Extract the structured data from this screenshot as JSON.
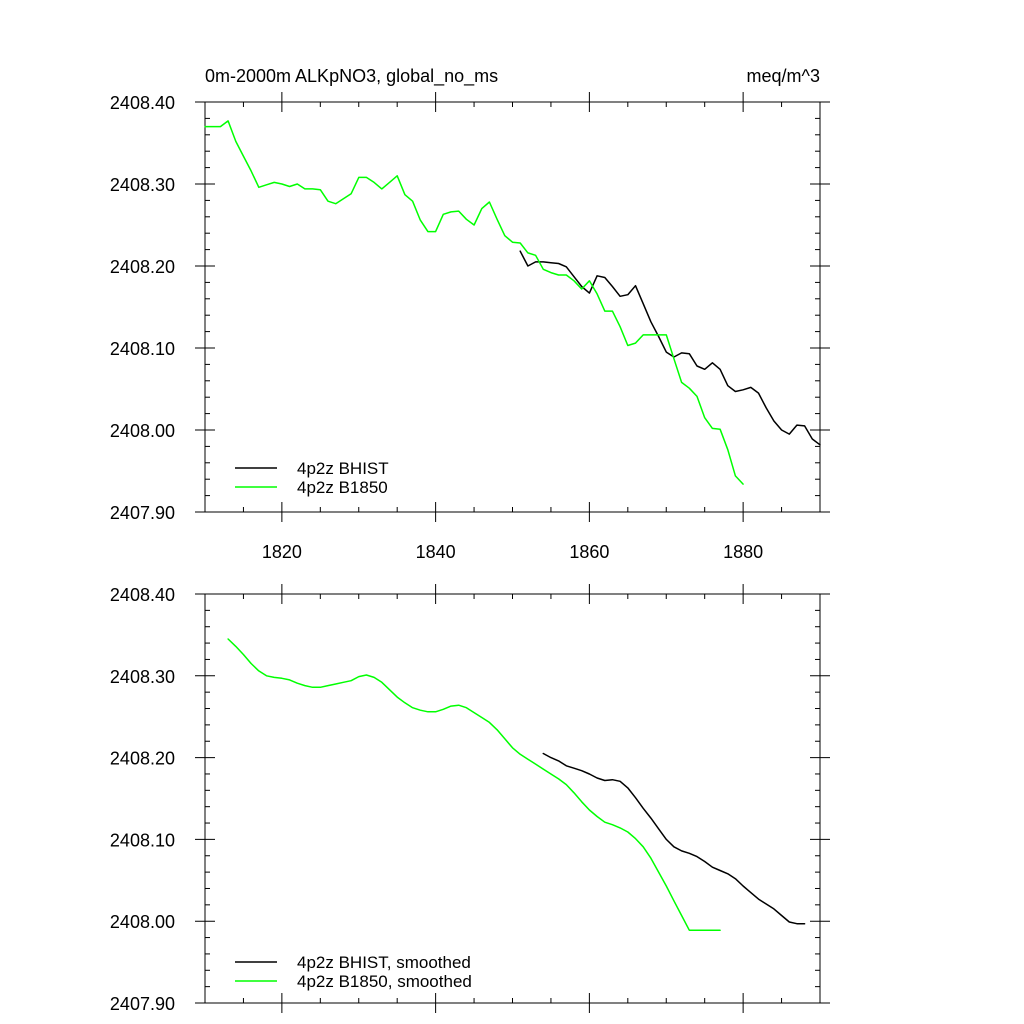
{
  "chart_data": [
    {
      "type": "line",
      "title": "0m-2000m ALKpNO3, global_no_ms",
      "units": "meq/m^3",
      "xlim": [
        1810,
        1890
      ],
      "ylim": [
        2407.9,
        2408.4
      ],
      "xticks": [
        1820,
        1840,
        1860,
        1880
      ],
      "xtick_labels": [
        "1820",
        "1840",
        "1860",
        "1880"
      ],
      "yticks": [
        2407.9,
        2408.0,
        2408.1,
        2408.2,
        2408.3,
        2408.4
      ],
      "ytick_labels": [
        "2407.90",
        "2408.00",
        "2408.10",
        "2408.20",
        "2408.30",
        "2408.40"
      ],
      "legend_placement": "bottom-left",
      "series": [
        {
          "name": "4p2z BHIST",
          "color": "#000000",
          "x": [
            1851,
            1852,
            1853,
            1854,
            1855,
            1856,
            1857,
            1858,
            1859,
            1860,
            1861,
            1862,
            1863,
            1864,
            1865,
            1866,
            1867,
            1868,
            1869,
            1870,
            1871,
            1872,
            1873,
            1874,
            1875,
            1876,
            1877,
            1878,
            1879,
            1880,
            1881,
            1882,
            1883,
            1884,
            1885,
            1886,
            1887,
            1888,
            1889,
            1890
          ],
          "y": [
            2408.218,
            2408.2,
            2408.205,
            2408.205,
            2408.204,
            2408.203,
            2408.199,
            2408.187,
            2408.175,
            2408.167,
            2408.188,
            2408.186,
            2408.175,
            2408.163,
            2408.165,
            2408.176,
            2408.154,
            2408.132,
            2408.114,
            2408.095,
            2408.089,
            2408.094,
            2408.093,
            2408.078,
            2408.074,
            2408.082,
            2408.074,
            2408.054,
            2408.047,
            2408.049,
            2408.052,
            2408.045,
            2408.027,
            2408.011,
            2408.0,
            2407.995,
            2408.006,
            2408.005,
            2407.989,
            2407.982
          ]
        },
        {
          "name": "4p2z B1850",
          "color": "#00ff00",
          "x": [
            1810,
            1811,
            1812,
            1813,
            1814,
            1815,
            1816,
            1817,
            1818,
            1819,
            1820,
            1821,
            1822,
            1823,
            1824,
            1825,
            1826,
            1827,
            1828,
            1829,
            1830,
            1831,
            1832,
            1833,
            1834,
            1835,
            1836,
            1837,
            1838,
            1839,
            1840,
            1841,
            1842,
            1843,
            1844,
            1845,
            1846,
            1847,
            1848,
            1849,
            1850,
            1851,
            1852,
            1853,
            1854,
            1855,
            1856,
            1857,
            1858,
            1859,
            1860,
            1861,
            1862,
            1863,
            1864,
            1865,
            1866,
            1867,
            1868,
            1869,
            1870,
            1871,
            1872,
            1873,
            1874,
            1875,
            1876,
            1877,
            1878,
            1879,
            1880
          ],
          "y": [
            2408.37,
            2408.37,
            2408.37,
            2408.377,
            2408.352,
            2408.334,
            2408.316,
            2408.296,
            2408.299,
            2408.302,
            2408.3,
            2408.297,
            2408.3,
            2408.294,
            2408.294,
            2408.293,
            2408.279,
            2408.276,
            2408.282,
            2408.288,
            2408.308,
            2408.308,
            2408.302,
            2408.294,
            2408.302,
            2408.31,
            2408.287,
            2408.279,
            2408.256,
            2408.242,
            2408.242,
            2408.263,
            2408.266,
            2408.267,
            2408.257,
            2408.25,
            2408.27,
            2408.278,
            2408.257,
            2408.237,
            2408.229,
            2408.228,
            2408.216,
            2408.213,
            2408.196,
            2408.192,
            2408.189,
            2408.189,
            2408.182,
            2408.172,
            2408.182,
            2408.166,
            2408.145,
            2408.145,
            2408.126,
            2408.103,
            2408.106,
            2408.116,
            2408.116,
            2408.116,
            2408.116,
            2408.087,
            2408.058,
            2408.051,
            2408.041,
            2408.015,
            2408.002,
            2408.001,
            2407.976,
            2407.944,
            2407.934
          ]
        }
      ]
    },
    {
      "type": "line",
      "title": "",
      "xlim": [
        1810,
        1890
      ],
      "ylim": [
        2407.9,
        2408.4
      ],
      "xticks": [
        1820,
        1840,
        1860,
        1880
      ],
      "xtick_labels": [],
      "yticks": [
        2407.9,
        2408.0,
        2408.1,
        2408.2,
        2408.3,
        2408.4
      ],
      "ytick_labels": [
        "2407.90",
        "2408.00",
        "2408.10",
        "2408.20",
        "2408.30",
        "2408.40"
      ],
      "legend_placement": "bottom-left",
      "series": [
        {
          "name": "4p2z BHIST, smoothed",
          "color": "#000000",
          "x": [
            1854,
            1855,
            1856,
            1857,
            1858,
            1859,
            1860,
            1861,
            1862,
            1863,
            1864,
            1865,
            1866,
            1867,
            1868,
            1869,
            1870,
            1871,
            1872,
            1873,
            1874,
            1875,
            1876,
            1877,
            1878,
            1879,
            1880,
            1881,
            1882,
            1883,
            1884,
            1885,
            1886,
            1887,
            1888
          ],
          "y": [
            2408.205,
            2408.2,
            2408.196,
            2408.19,
            2408.187,
            2408.184,
            2408.18,
            2408.175,
            2408.172,
            2408.173,
            2408.171,
            2408.163,
            2408.151,
            2408.138,
            2408.126,
            2408.113,
            2408.1,
            2408.091,
            2408.086,
            2408.083,
            2408.079,
            2408.073,
            2408.066,
            2408.062,
            2408.058,
            2408.052,
            2408.043,
            2408.035,
            2408.027,
            2408.021,
            2408.015,
            2408.007,
            2407.999,
            2407.997,
            2407.997
          ]
        },
        {
          "name": "4p2z B1850, smoothed",
          "color": "#00ff00",
          "x": [
            1813,
            1814,
            1815,
            1816,
            1817,
            1818,
            1819,
            1820,
            1821,
            1822,
            1823,
            1824,
            1825,
            1826,
            1827,
            1828,
            1829,
            1830,
            1831,
            1832,
            1833,
            1834,
            1835,
            1836,
            1837,
            1838,
            1839,
            1840,
            1841,
            1842,
            1843,
            1844,
            1845,
            1846,
            1847,
            1848,
            1849,
            1850,
            1851,
            1852,
            1853,
            1854,
            1855,
            1856,
            1857,
            1858,
            1859,
            1860,
            1861,
            1862,
            1863,
            1864,
            1865,
            1866,
            1867,
            1868,
            1869,
            1870,
            1871,
            1872,
            1873,
            1874,
            1875,
            1876,
            1877
          ],
          "y": [
            2408.345,
            2408.336,
            2408.326,
            2408.315,
            2408.306,
            2408.3,
            2408.298,
            2408.297,
            2408.295,
            2408.291,
            2408.288,
            2408.286,
            2408.286,
            2408.288,
            2408.29,
            2408.292,
            2408.294,
            2408.299,
            2408.301,
            2408.298,
            2408.292,
            2408.283,
            2408.274,
            2408.267,
            2408.261,
            2408.258,
            2408.256,
            2408.256,
            2408.259,
            2408.263,
            2408.264,
            2408.261,
            2408.255,
            2408.249,
            2408.243,
            2408.234,
            2408.223,
            2408.212,
            2408.204,
            2408.198,
            2408.192,
            2408.186,
            2408.18,
            2408.174,
            2408.167,
            2408.157,
            2408.146,
            2408.136,
            2408.128,
            2408.121,
            2408.118,
            2408.114,
            2408.109,
            2408.101,
            2408.091,
            2408.077,
            2408.06,
            2408.043,
            2408.025,
            2408.007,
            2407.989,
            2407.989,
            2407.989,
            2407.989,
            2407.989
          ]
        }
      ]
    }
  ]
}
